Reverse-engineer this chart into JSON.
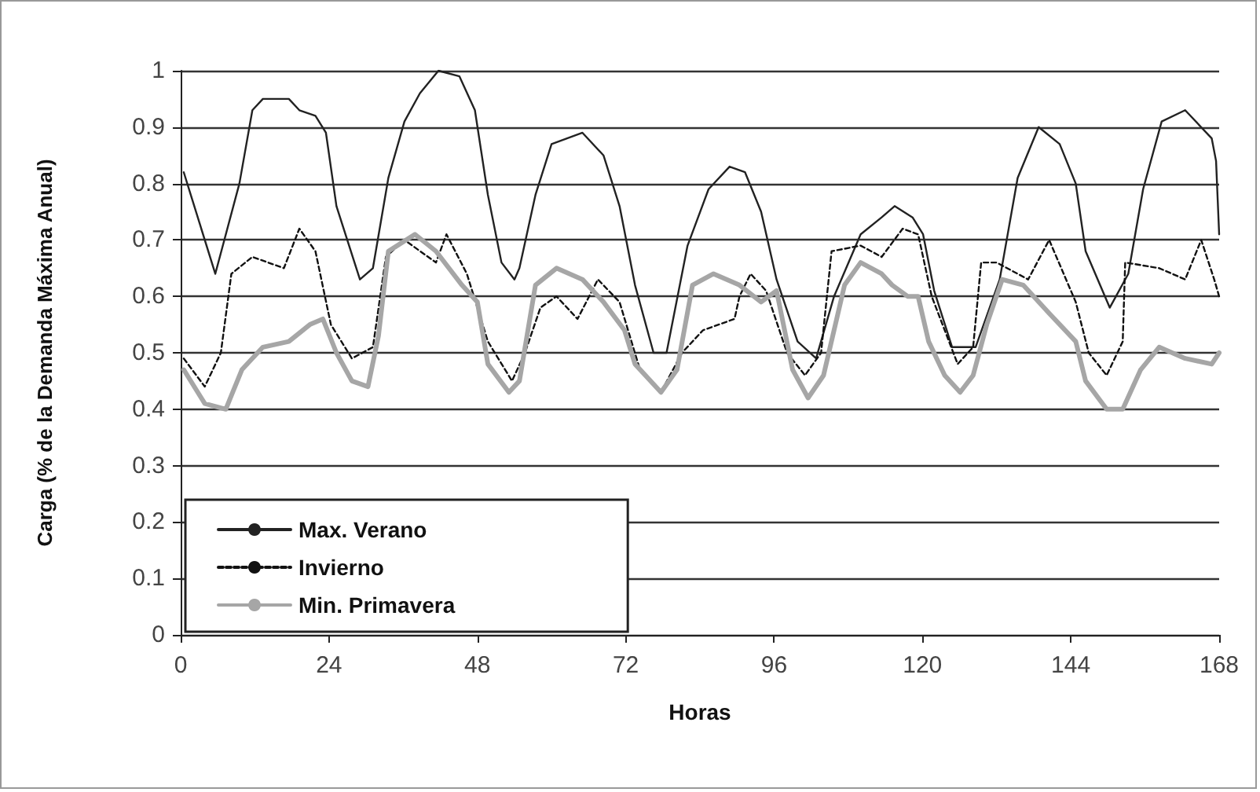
{
  "chart_data": {
    "type": "line",
    "xlabel": "Horas",
    "ylabel": "Carga (% de la Demanda Máxima Anual)",
    "xlim": [
      0,
      168
    ],
    "xticks": [
      0,
      24,
      48,
      72,
      96,
      120,
      144,
      168
    ],
    "ylim": [
      0,
      1
    ],
    "yticks": [
      0,
      0.1,
      0.2,
      0.3,
      0.4,
      0.5,
      0.6,
      0.7,
      0.8,
      0.9,
      1
    ],
    "grid": "y",
    "legend": "bottom left",
    "marker": "none",
    "series": [
      {
        "name": "Max. Verano",
        "color": "#222222",
        "line_style": "solid",
        "x": [
          0.5,
          5.6,
          9.5,
          11.6,
          13.3,
          17.5,
          19.2,
          21.8,
          23.5,
          25.2,
          29,
          31.1,
          33.6,
          36.2,
          38.7,
          41.7,
          45.1,
          47.6,
          49.7,
          51.9,
          54,
          54.8,
          57.4,
          60,
          62.5,
          65,
          68.4,
          71,
          73.5,
          76.5,
          78.6,
          82,
          85.4,
          88.8,
          91.3,
          93.9,
          96.4,
          99.8,
          102.8,
          105.7,
          110,
          113.4,
          115.5,
          118.4,
          120.1,
          121.9,
          124.8,
          128.6,
          132.5,
          135.4,
          138.8,
          142.2,
          144.8,
          146.4,
          150.3,
          153.3,
          155.7,
          158.7,
          162.5,
          166.8,
          167.5,
          168
        ],
        "values": [
          0.82,
          0.64,
          0.8,
          0.93,
          0.95,
          0.95,
          0.93,
          0.92,
          0.89,
          0.76,
          0.63,
          0.65,
          0.81,
          0.91,
          0.96,
          1.0,
          0.99,
          0.93,
          0.78,
          0.66,
          0.63,
          0.65,
          0.78,
          0.87,
          0.88,
          0.89,
          0.85,
          0.76,
          0.62,
          0.5,
          0.5,
          0.69,
          0.79,
          0.83,
          0.82,
          0.75,
          0.63,
          0.52,
          0.49,
          0.6,
          0.71,
          0.74,
          0.76,
          0.74,
          0.71,
          0.61,
          0.51,
          0.51,
          0.63,
          0.81,
          0.9,
          0.87,
          0.8,
          0.68,
          0.58,
          0.64,
          0.79,
          0.91,
          0.93,
          0.88,
          0.84,
          0.71
        ]
      },
      {
        "name": "Invierno",
        "color": "#111111",
        "line_style": "dashed",
        "x": [
          0.5,
          3.9,
          6.5,
          8.2,
          11.6,
          16.7,
          19.2,
          21.8,
          24.3,
          27.7,
          31.1,
          33.2,
          36.2,
          41.3,
          43,
          46.3,
          49.7,
          53.6,
          55.7,
          58.2,
          60.8,
          64.2,
          67.5,
          71,
          74.3,
          77.7,
          81.1,
          84.5,
          89.6,
          90.4,
          92.2,
          94.7,
          98.1,
          101,
          103.6,
          105.3,
          110,
          113.4,
          116.8,
          119.3,
          121.5,
          125.7,
          128.2,
          129.5,
          132,
          137.1,
          140.5,
          144.8,
          146.9,
          149.8,
          152.4,
          152.8,
          158.3,
          162.5,
          165.1,
          167.2,
          168
        ],
        "values": [
          0.49,
          0.44,
          0.5,
          0.64,
          0.67,
          0.65,
          0.72,
          0.68,
          0.55,
          0.49,
          0.51,
          0.67,
          0.7,
          0.66,
          0.71,
          0.64,
          0.52,
          0.45,
          0.5,
          0.58,
          0.6,
          0.56,
          0.63,
          0.59,
          0.47,
          0.43,
          0.5,
          0.54,
          0.56,
          0.6,
          0.64,
          0.61,
          0.5,
          0.46,
          0.5,
          0.68,
          0.69,
          0.67,
          0.72,
          0.71,
          0.6,
          0.48,
          0.51,
          0.66,
          0.66,
          0.63,
          0.7,
          0.59,
          0.5,
          0.46,
          0.52,
          0.66,
          0.65,
          0.63,
          0.7,
          0.63,
          0.6
        ]
      },
      {
        "name": "Min. Primavera",
        "color": "#a6a6a6",
        "line_style": "solid",
        "x": [
          0.5,
          3.9,
          7.3,
          9.9,
          13.3,
          17.5,
          20.9,
          23,
          25.2,
          27.7,
          30.3,
          32,
          33.6,
          37.9,
          41.3,
          45.5,
          48,
          49.7,
          53.1,
          54.8,
          57.4,
          60.8,
          65,
          68.4,
          71.8,
          73.5,
          77.7,
          80.3,
          82.8,
          86.2,
          90.4,
          93.9,
          96.4,
          99,
          101.5,
          104,
          107.4,
          110,
          113.4,
          115.1,
          117.6,
          119.3,
          121,
          123.6,
          126.1,
          128.2,
          130.4,
          132.9,
          136.3,
          140.5,
          144.8,
          146.4,
          149.8,
          152.4,
          155.3,
          158.3,
          162.5,
          166.8,
          168
        ],
        "values": [
          0.47,
          0.41,
          0.4,
          0.47,
          0.51,
          0.52,
          0.55,
          0.56,
          0.5,
          0.45,
          0.44,
          0.53,
          0.68,
          0.71,
          0.68,
          0.62,
          0.59,
          0.48,
          0.43,
          0.45,
          0.62,
          0.65,
          0.63,
          0.59,
          0.54,
          0.48,
          0.43,
          0.47,
          0.62,
          0.64,
          0.62,
          0.59,
          0.61,
          0.47,
          0.42,
          0.46,
          0.62,
          0.66,
          0.64,
          0.62,
          0.6,
          0.6,
          0.52,
          0.46,
          0.43,
          0.46,
          0.55,
          0.63,
          0.62,
          0.57,
          0.52,
          0.45,
          0.4,
          0.4,
          0.47,
          0.51,
          0.49,
          0.48,
          0.5
        ]
      }
    ]
  }
}
